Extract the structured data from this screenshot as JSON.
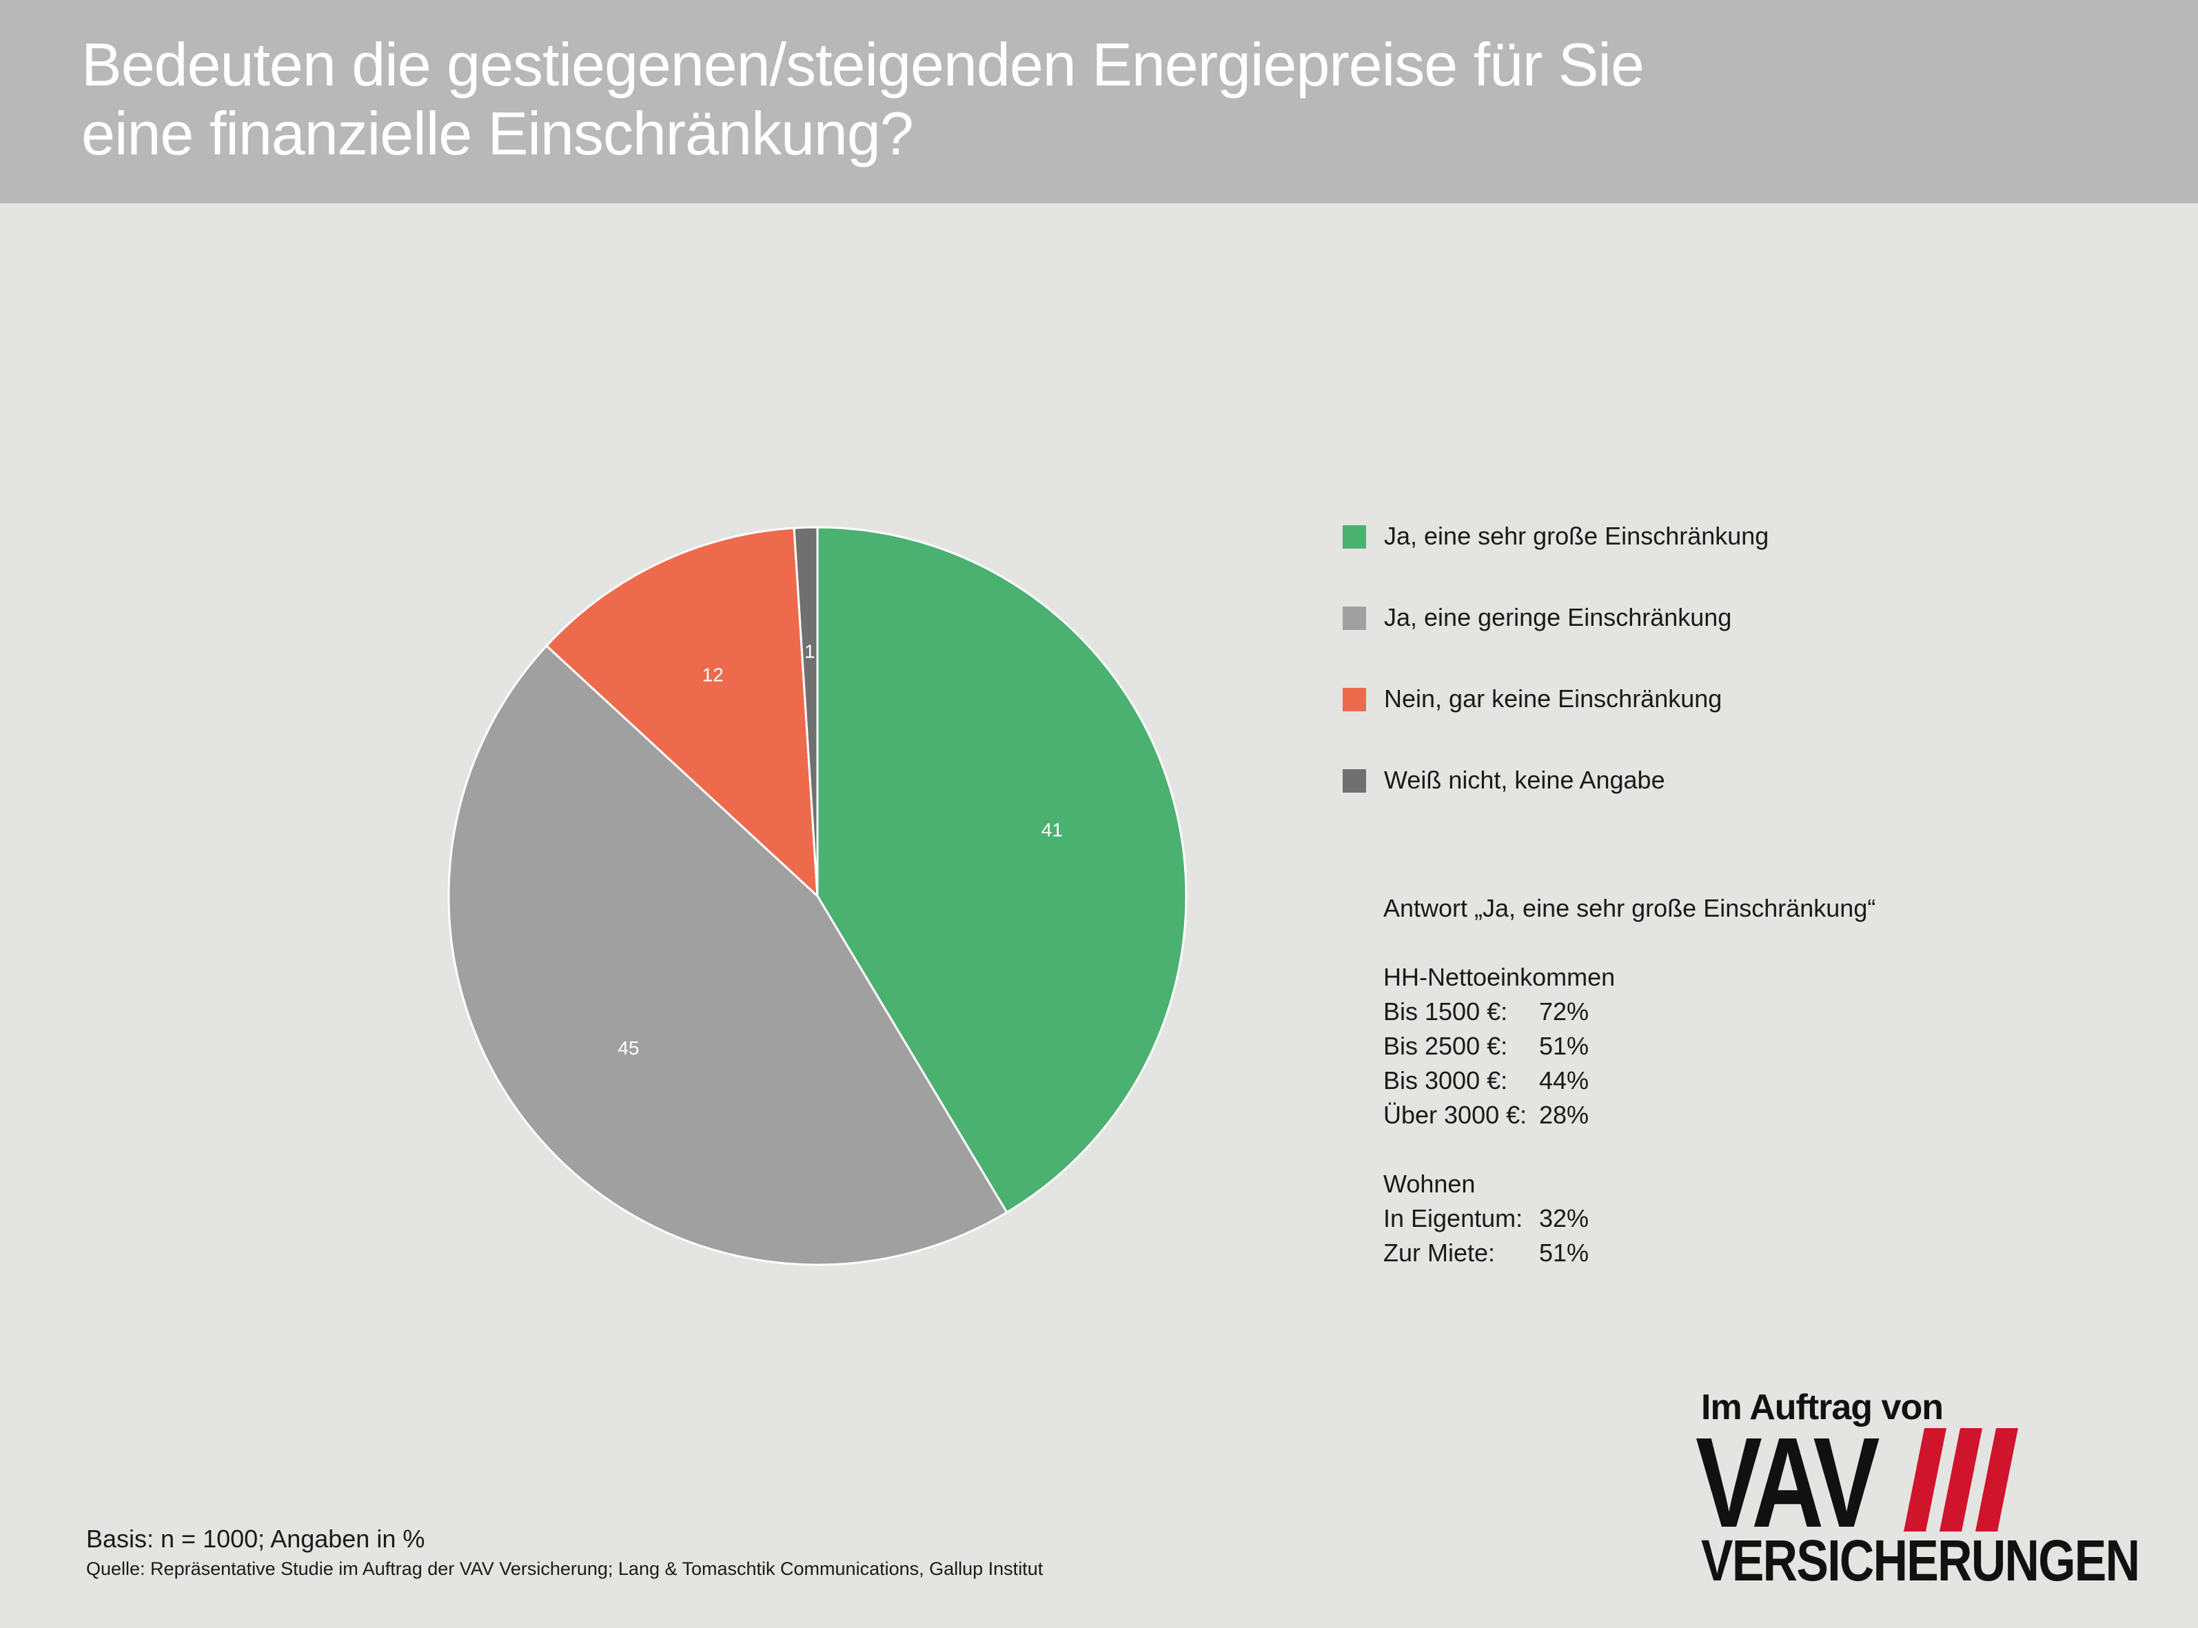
{
  "header": {
    "title_line1": "Bedeuten die gestiegenen/steigenden Energiepreise für Sie",
    "title_line2": "eine finanzielle Einschränkung?"
  },
  "chart_data": {
    "type": "pie",
    "categories": [
      "Ja, eine sehr große Einschränkung",
      "Ja, eine geringe Einschränkung",
      "Nein, gar keine Einschränkung",
      "Weiß nicht, keine Angabe"
    ],
    "values": [
      41,
      45,
      12,
      1
    ],
    "value_labels": [
      "41",
      "45",
      "12",
      "1"
    ],
    "colors": [
      "#4bb170",
      "#a0a0a0",
      "#ee6a4c",
      "#707070"
    ],
    "legend_placement": "right"
  },
  "stats": {
    "heading": "Antwort „Ja, eine sehr große Einschränkung“",
    "income_heading": "HH-Nettoeinkommen",
    "income": [
      {
        "label": "Bis 1500 €:",
        "value": "72%"
      },
      {
        "label": "Bis 2500 €:",
        "value": "51%"
      },
      {
        "label": "Bis 3000 €:",
        "value": "44%"
      },
      {
        "label": "Über 3000 €:",
        "value": "28%"
      }
    ],
    "living_heading": "Wohnen",
    "living": [
      {
        "label": "In Eigentum:",
        "value": "32%"
      },
      {
        "label": "Zur Miete:",
        "value": "51%"
      }
    ]
  },
  "footer": {
    "basis": "Basis: n = 1000; Angaben in %",
    "source": "Quelle: Repräsentative Studie im Auftrag der VAV Versicherung; Lang & Tomaschtik Communications, Gallup Institut"
  },
  "logo": {
    "top_text": "Im Auftrag von",
    "main_text": "VAV",
    "bottom_text": "VERSICHERUNGEN",
    "stripe_color": "#d0142c",
    "text_color": "#111111"
  }
}
